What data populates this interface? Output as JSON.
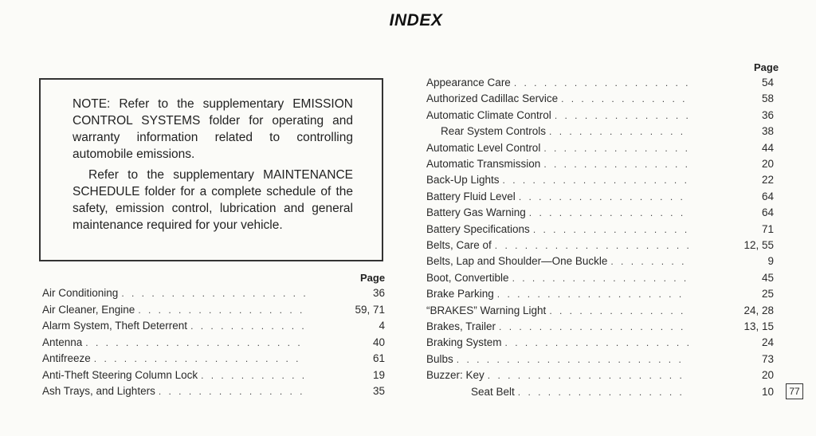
{
  "title": "INDEX",
  "note": {
    "p1": "NOTE: Refer to the supplementary EMISSION CONTROL SYSTEMS folder for operating and warranty information related to controlling automobile emissions.",
    "p2": "Refer to the supplementary MAINTENANCE SCHEDULE folder for a complete schedule of the safety, emission control, lubrication and general maintenance required for your vehicle."
  },
  "left_column": {
    "page_header": "Page",
    "entries": [
      {
        "label": "Air Conditioning",
        "page": "36"
      },
      {
        "label": "Air Cleaner, Engine",
        "page": "59, 71"
      },
      {
        "label": "Alarm System, Theft Deterrent",
        "page": "4"
      },
      {
        "label": "Antenna",
        "page": "40"
      },
      {
        "label": "Antifreeze",
        "page": "61"
      },
      {
        "label": "Anti-Theft Steering Column Lock",
        "page": "19"
      },
      {
        "label": "Ash Trays, and Lighters",
        "page": "35"
      }
    ]
  },
  "right_column": {
    "page_header": "Page",
    "entries": [
      {
        "label": "Appearance Care",
        "page": "54"
      },
      {
        "label": "Authorized Cadillac Service",
        "page": "58"
      },
      {
        "label": "Automatic Climate Control",
        "page": "36"
      },
      {
        "label": "Rear System Controls",
        "page": "38",
        "indent": 1
      },
      {
        "label": "Automatic Level Control",
        "page": "44"
      },
      {
        "label": "Automatic Transmission",
        "page": "20"
      },
      {
        "label": "Back-Up Lights",
        "page": "22"
      },
      {
        "label": "Battery Fluid Level",
        "page": "64"
      },
      {
        "label": "Battery Gas Warning",
        "page": "64"
      },
      {
        "label": "Battery Specifications",
        "page": "71"
      },
      {
        "label": "Belts, Care of",
        "page": "12, 55"
      },
      {
        "label": "Belts, Lap and Shoulder—One Buckle",
        "page": "9"
      },
      {
        "label": "Boot, Convertible",
        "page": "45"
      },
      {
        "label": "Brake Parking",
        "page": "25"
      },
      {
        "label": "“BRAKES” Warning Light",
        "page": "24, 28"
      },
      {
        "label": "Brakes, Trailer",
        "page": "13, 15"
      },
      {
        "label": "Braking System",
        "page": "24"
      },
      {
        "label": "Bulbs",
        "page": "73"
      },
      {
        "label": "Buzzer: Key",
        "page": "20"
      },
      {
        "label": "Seat Belt",
        "page": "10",
        "indent": 2
      }
    ]
  },
  "page_number": "77"
}
